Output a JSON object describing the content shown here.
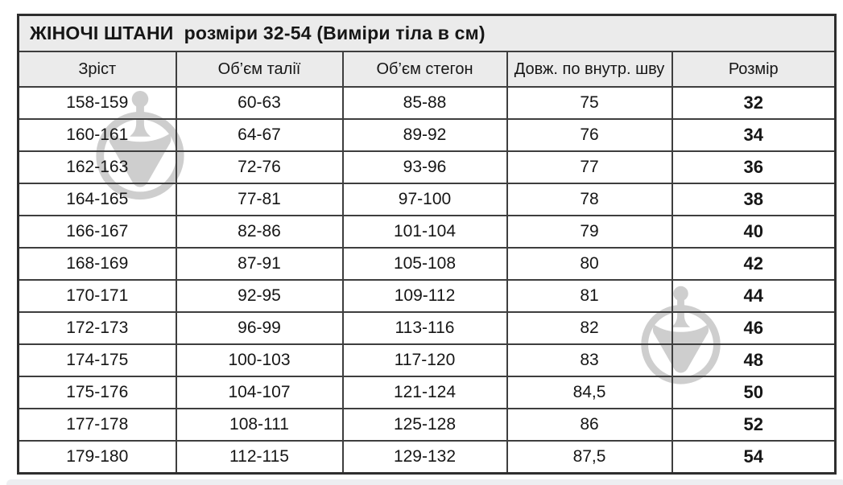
{
  "title": "ЖІНОЧІ ШТАНИ  розміри 32-54 (Виміри тіла в см)",
  "chart_data": {
    "type": "table",
    "title": "ЖІНОЧІ ШТАНИ розміри 32-54 (Виміри тіла в см)",
    "columns": [
      "Зріст",
      "Об’єм талії",
      "Об’єм стегон",
      "Довж. по внутр. шву",
      "Розмір"
    ],
    "rows": [
      [
        "158-159",
        "60-63",
        "85-88",
        "75",
        "32"
      ],
      [
        "160-161",
        "64-67",
        "89-92",
        "76",
        "34"
      ],
      [
        "162-163",
        "72-76",
        "93-96",
        "77",
        "36"
      ],
      [
        "164-165",
        "77-81",
        "97-100",
        "78",
        "38"
      ],
      [
        "166-167",
        "82-86",
        "101-104",
        "79",
        "40"
      ],
      [
        "168-169",
        "87-91",
        "105-108",
        "80",
        "42"
      ],
      [
        "170-171",
        "92-95",
        "109-112",
        "81",
        "44"
      ],
      [
        "172-173",
        "96-99",
        "113-116",
        "82",
        "46"
      ],
      [
        "174-175",
        "100-103",
        "117-120",
        "83",
        "48"
      ],
      [
        "175-176",
        "104-107",
        "121-124",
        "84,5",
        "50"
      ],
      [
        "177-178",
        "108-111",
        "125-128",
        "86",
        "52"
      ],
      [
        "179-180",
        "112-115",
        "129-132",
        "87,5",
        "54"
      ]
    ]
  },
  "colors": {
    "header_bg": "#ebebeb",
    "border": "#3e3e3e",
    "text": "#161616",
    "watermark_gray": "#cecece",
    "bottom_strip": "#edeef1"
  },
  "icons": {
    "watermark": "spinning-top-logo-watermark"
  }
}
